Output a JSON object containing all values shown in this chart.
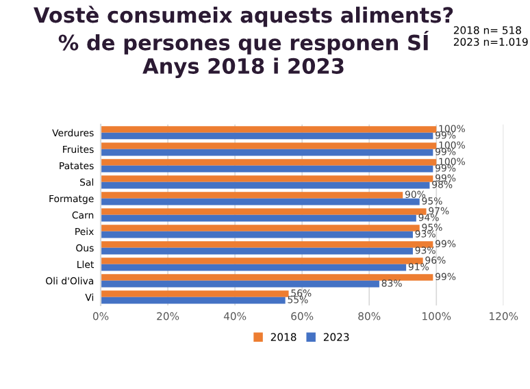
{
  "chart_data": {
    "type": "bar",
    "orientation": "horizontal",
    "title": "Vostè consumeix aquests aliments?\n% de persones que responen SÍ\nAnys 2018 i 2023",
    "annotations": [
      "2018 n= 518\n2023 n=1.019"
    ],
    "categories": [
      "Verdures",
      "Fruites",
      "Patates",
      "Sal",
      "Formatge",
      "Carn",
      "Peix",
      "Ous",
      "Llet",
      "Oli d'Oliva",
      "Vi"
    ],
    "series": [
      {
        "name": "2018",
        "color": "#ed7d31",
        "values": [
          100,
          100,
          100,
          99,
          90,
          97,
          95,
          99,
          96,
          99,
          56
        ],
        "value_labels": [
          "100%",
          "100%",
          "100%",
          "99%",
          "90%",
          "97%",
          "95%",
          "99%",
          "96%",
          "99%",
          "56%"
        ]
      },
      {
        "name": "2023",
        "color": "#4472c4",
        "values": [
          99,
          99,
          99,
          98,
          95,
          94,
          93,
          93,
          91,
          83,
          55
        ],
        "value_labels": [
          "99%",
          "99%",
          "99%",
          "98%",
          "95%",
          "94%",
          "93%",
          "93%",
          "91%",
          "83%",
          "55%"
        ]
      }
    ],
    "xlim": [
      0,
      120
    ],
    "xticks": [
      {
        "value": 0,
        "label": "0%"
      },
      {
        "value": 20,
        "label": "20%"
      },
      {
        "value": 40,
        "label": "40%"
      },
      {
        "value": 60,
        "label": "60%"
      },
      {
        "value": 80,
        "label": "80%"
      },
      {
        "value": 100,
        "label": "100%"
      },
      {
        "value": 120,
        "label": "120%"
      }
    ],
    "grid": "x",
    "legend": "bottom"
  }
}
